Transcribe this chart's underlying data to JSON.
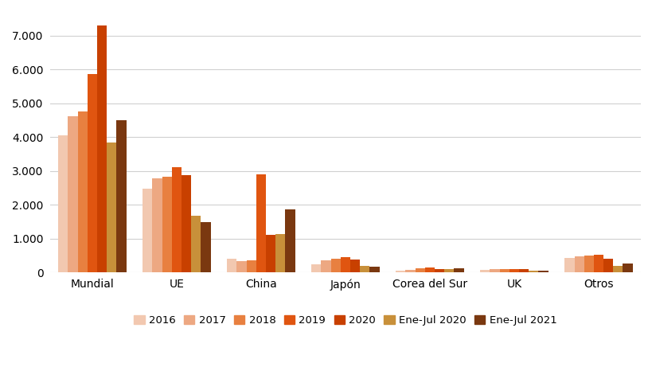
{
  "categories": [
    "Mundial",
    "UE",
    "China",
    "Japón",
    "Corea del Sur",
    "UK",
    "Otros"
  ],
  "series": [
    {
      "label": "2016",
      "color": "#f2c8b0",
      "values": [
        4050,
        2480,
        390,
        240,
        50,
        75,
        420
      ]
    },
    {
      "label": "2017",
      "color": "#eda882",
      "values": [
        4620,
        2780,
        340,
        355,
        75,
        90,
        470
      ]
    },
    {
      "label": "2018",
      "color": "#e88040",
      "values": [
        4750,
        2830,
        350,
        390,
        110,
        100,
        490
      ]
    },
    {
      "label": "2019",
      "color": "#e05510",
      "values": [
        5860,
        3100,
        2900,
        450,
        140,
        95,
        510
      ]
    },
    {
      "label": "2020",
      "color": "#c84000",
      "values": [
        7300,
        2880,
        1110,
        380,
        105,
        90,
        410
      ]
    },
    {
      "label": "Ene-Jul 2020",
      "color": "#c8903a",
      "values": [
        3850,
        1680,
        1120,
        195,
        85,
        58,
        195
      ]
    },
    {
      "label": "Ene-Jul 2021",
      "color": "#7a3810",
      "values": [
        4500,
        1480,
        1870,
        170,
        108,
        42,
        250
      ]
    }
  ],
  "ylim": [
    0,
    7700
  ],
  "yticks": [
    0,
    1000,
    2000,
    3000,
    4000,
    5000,
    6000,
    7000
  ],
  "yticklabels": [
    "0",
    "1.000",
    "2.000",
    "3.000",
    "4.000",
    "5.000",
    "6.000",
    "7.000"
  ],
  "background_color": "#ffffff",
  "grid_color": "#d0d0d0",
  "tick_fontsize": 10,
  "legend_fontsize": 9.5
}
